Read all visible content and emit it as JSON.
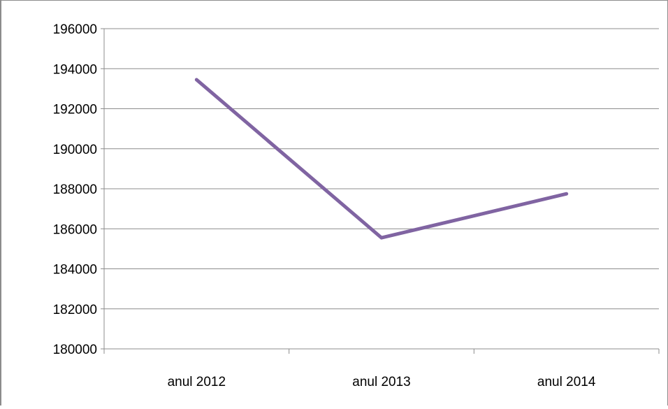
{
  "chart_data": {
    "type": "line",
    "title": "",
    "xlabel": "",
    "ylabel": "",
    "categories": [
      "anul 2012",
      "anul 2013",
      "anul 2014"
    ],
    "series": [
      {
        "values": [
          193450,
          185550,
          187750
        ],
        "color": "#8064a2"
      }
    ],
    "ylim": [
      180000,
      196000
    ],
    "yticks": [
      180000,
      182000,
      184000,
      186000,
      188000,
      190000,
      192000,
      194000,
      196000
    ],
    "grid": true,
    "legend": "none"
  }
}
